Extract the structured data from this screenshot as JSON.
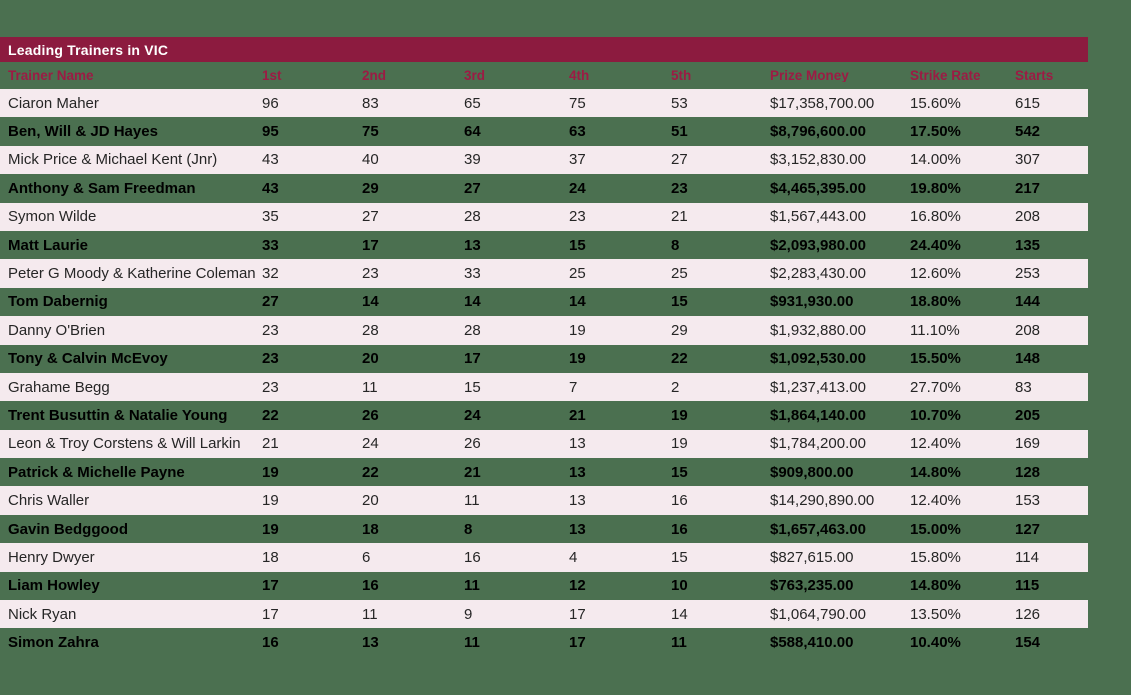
{
  "title_bar": {
    "title": "Leading Trainers in VIC"
  },
  "colors": {
    "background_green": "#4b7050",
    "maroon_bar": "#8c1b3f",
    "header_label_text": "#9c1b44",
    "row_light_bg": "#f5eaee",
    "row_light_text": "#262626",
    "row_dark_text": "#000000",
    "title_text": "#ffffff"
  },
  "chart_data": {
    "type": "table",
    "title": "Leading Trainers in VIC",
    "columns": [
      "Trainer Name",
      "1st",
      "2nd",
      "3rd",
      "4th",
      "5th",
      "Prize Money",
      "Strike Rate",
      "Starts"
    ],
    "rows": [
      [
        "Ciaron Maher",
        96,
        83,
        65,
        75,
        53,
        "$17,358,700.00",
        "15.60%",
        615
      ],
      [
        "Ben, Will & JD Hayes",
        95,
        75,
        64,
        63,
        51,
        "$8,796,600.00",
        "17.50%",
        542
      ],
      [
        "Mick Price & Michael Kent (Jnr)",
        43,
        40,
        39,
        37,
        27,
        "$3,152,830.00",
        "14.00%",
        307
      ],
      [
        "Anthony & Sam Freedman",
        43,
        29,
        27,
        24,
        23,
        "$4,465,395.00",
        "19.80%",
        217
      ],
      [
        "Symon Wilde",
        35,
        27,
        28,
        23,
        21,
        "$1,567,443.00",
        "16.80%",
        208
      ],
      [
        "Matt Laurie",
        33,
        17,
        13,
        15,
        8,
        "$2,093,980.00",
        "24.40%",
        135
      ],
      [
        "Peter G Moody & Katherine Coleman",
        32,
        23,
        33,
        25,
        25,
        "$2,283,430.00",
        "12.60%",
        253
      ],
      [
        "Tom Dabernig",
        27,
        14,
        14,
        14,
        15,
        "$931,930.00",
        "18.80%",
        144
      ],
      [
        "Danny O'Brien",
        23,
        28,
        28,
        19,
        29,
        "$1,932,880.00",
        "11.10%",
        208
      ],
      [
        "Tony & Calvin McEvoy",
        23,
        20,
        17,
        19,
        22,
        "$1,092,530.00",
        "15.50%",
        148
      ],
      [
        "Grahame Begg",
        23,
        11,
        15,
        7,
        2,
        "$1,237,413.00",
        "27.70%",
        83
      ],
      [
        "Trent Busuttin & Natalie Young",
        22,
        26,
        24,
        21,
        19,
        "$1,864,140.00",
        "10.70%",
        205
      ],
      [
        "Leon & Troy Corstens & Will Larkin",
        21,
        24,
        26,
        13,
        19,
        "$1,784,200.00",
        "12.40%",
        169
      ],
      [
        "Patrick & Michelle Payne",
        19,
        22,
        21,
        13,
        15,
        "$909,800.00",
        "14.80%",
        128
      ],
      [
        "Chris Waller",
        19,
        20,
        11,
        13,
        16,
        "$14,290,890.00",
        "12.40%",
        153
      ],
      [
        "Gavin Bedggood",
        19,
        18,
        8,
        13,
        16,
        "$1,657,463.00",
        "15.00%",
        127
      ],
      [
        "Henry Dwyer",
        18,
        6,
        16,
        4,
        15,
        "$827,615.00",
        "15.80%",
        114
      ],
      [
        "Liam Howley",
        17,
        16,
        11,
        12,
        10,
        "$763,235.00",
        "14.80%",
        115
      ],
      [
        "Nick Ryan",
        17,
        11,
        9,
        17,
        14,
        "$1,064,790.00",
        "13.50%",
        126
      ],
      [
        "Simon Zahra",
        16,
        13,
        11,
        17,
        11,
        "$588,410.00",
        "10.40%",
        154
      ]
    ]
  }
}
